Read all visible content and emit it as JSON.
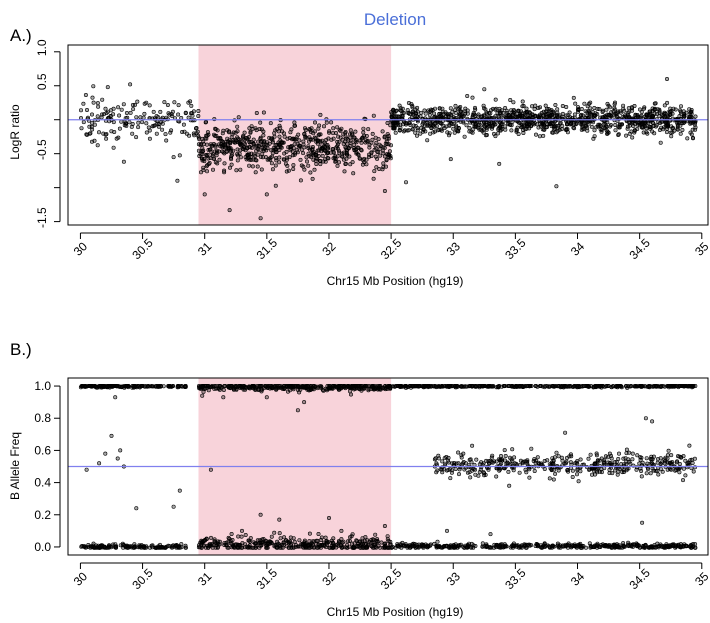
{
  "chart_data": [
    {
      "type": "scatter",
      "panel_label": "A.)",
      "title": "Deletion",
      "xlabel": "Chr15 Mb Position (hg19)",
      "ylabel": "LogR ratio",
      "xlim": [
        29.9,
        35.05
      ],
      "ylim": [
        -1.55,
        1.1
      ],
      "x_ticks": [
        30,
        30.5,
        31,
        31.5,
        32,
        32.5,
        33,
        33.5,
        34,
        34.5,
        35
      ],
      "x_tick_labels": [
        "30",
        "30.5",
        "31",
        "31.5",
        "32",
        "32.5",
        "33",
        "33.5",
        "34",
        "34.5",
        "35"
      ],
      "y_ticks": [
        -1.5,
        -1.0,
        -0.5,
        0,
        0.5,
        1.0
      ],
      "y_tick_labels": [
        "-1.5",
        "",
        "-0.5",
        "",
        "0.5",
        "1.0"
      ],
      "reference_line_y": 0,
      "highlight_region": {
        "x_start": 30.95,
        "x_end": 32.5,
        "color": "#f8d3da"
      },
      "line_color": "#8080ee",
      "point_color": "#000000",
      "series": [
        {
          "segments": [
            {
              "x_start": 30.0,
              "x_end": 30.95,
              "mean": 0.0,
              "sd": 0.15,
              "n": 170
            },
            {
              "x_start": 30.95,
              "x_end": 32.5,
              "mean": -0.4,
              "sd": 0.17,
              "n": 650
            },
            {
              "x_start": 32.5,
              "x_end": 34.95,
              "mean": 0.0,
              "sd": 0.11,
              "n": 1100
            }
          ],
          "outliers": [
            {
              "x": 30.35,
              "y": -0.62
            },
            {
              "x": 30.75,
              "y": -0.55
            },
            {
              "x": 30.78,
              "y": -0.9
            },
            {
              "x": 31.2,
              "y": -1.33
            },
            {
              "x": 31.45,
              "y": -1.45
            },
            {
              "x": 31.0,
              "y": -1.1
            },
            {
              "x": 31.5,
              "y": -1.1
            },
            {
              "x": 32.45,
              "y": -1.05
            },
            {
              "x": 32.62,
              "y": -0.92
            },
            {
              "x": 32.98,
              "y": -0.58
            },
            {
              "x": 33.25,
              "y": 0.45
            },
            {
              "x": 33.37,
              "y": -0.65
            },
            {
              "x": 33.83,
              "y": -0.98
            },
            {
              "x": 34.72,
              "y": 0.6
            },
            {
              "x": 30.4,
              "y": 0.52
            },
            {
              "x": 30.22,
              "y": 0.48
            }
          ]
        }
      ]
    },
    {
      "type": "scatter",
      "panel_label": "B.)",
      "title": "",
      "xlabel": "Chr15 Mb Position (hg19)",
      "ylabel": "B Allele Freq",
      "xlim": [
        29.9,
        35.05
      ],
      "ylim": [
        -0.05,
        1.05
      ],
      "x_ticks": [
        30,
        30.5,
        31,
        31.5,
        32,
        32.5,
        33,
        33.5,
        34,
        34.5,
        35
      ],
      "x_tick_labels": [
        "30",
        "30.5",
        "31",
        "31.5",
        "32",
        "32.5",
        "33",
        "33.5",
        "34",
        "34.5",
        "35"
      ],
      "y_ticks": [
        0.0,
        0.2,
        0.4,
        0.6,
        0.8,
        1.0
      ],
      "y_tick_labels": [
        "0.0",
        "0.2",
        "0.4",
        "0.6",
        "0.8",
        "1.0"
      ],
      "reference_line_y": 0.5,
      "highlight_region": {
        "x_start": 30.95,
        "x_end": 32.5,
        "color": "#f8d3da"
      },
      "line_color": "#8080ee",
      "point_color": "#000000",
      "series": [
        {
          "segments": [
            {
              "x_start": 30.0,
              "x_end": 30.85,
              "mean": 1.0,
              "sd": 0.004,
              "n": 160
            },
            {
              "x_start": 30.95,
              "x_end": 32.5,
              "mean": 0.995,
              "sd": 0.012,
              "n": 380
            },
            {
              "x_start": 32.5,
              "x_end": 34.95,
              "mean": 1.0,
              "sd": 0.004,
              "n": 420
            },
            {
              "x_start": 30.0,
              "x_end": 30.85,
              "mean": 0.0,
              "sd": 0.008,
              "n": 150
            },
            {
              "x_start": 30.95,
              "x_end": 32.5,
              "mean": 0.015,
              "sd": 0.025,
              "n": 360
            },
            {
              "x_start": 32.5,
              "x_end": 34.95,
              "mean": 0.005,
              "sd": 0.008,
              "n": 430
            },
            {
              "x_start": 32.85,
              "x_end": 34.95,
              "mean": 0.51,
              "sd": 0.035,
              "n": 420
            }
          ],
          "outliers": [
            {
              "x": 30.05,
              "y": 0.48
            },
            {
              "x": 30.15,
              "y": 0.52
            },
            {
              "x": 30.2,
              "y": 0.58
            },
            {
              "x": 30.25,
              "y": 0.69
            },
            {
              "x": 30.3,
              "y": 0.55
            },
            {
              "x": 30.32,
              "y": 0.6
            },
            {
              "x": 30.35,
              "y": 0.5
            },
            {
              "x": 30.28,
              "y": 0.93
            },
            {
              "x": 30.45,
              "y": 0.24
            },
            {
              "x": 30.75,
              "y": 0.25
            },
            {
              "x": 30.8,
              "y": 0.35
            },
            {
              "x": 31.05,
              "y": 0.48
            },
            {
              "x": 30.98,
              "y": 0.94
            },
            {
              "x": 31.15,
              "y": 0.93
            },
            {
              "x": 31.5,
              "y": 0.93
            },
            {
              "x": 31.75,
              "y": 0.85
            },
            {
              "x": 31.8,
              "y": 0.9
            },
            {
              "x": 31.6,
              "y": 0.17
            },
            {
              "x": 31.45,
              "y": 0.2
            },
            {
              "x": 32.0,
              "y": 0.18
            },
            {
              "x": 32.45,
              "y": 0.13
            },
            {
              "x": 32.1,
              "y": 0.1
            },
            {
              "x": 31.3,
              "y": 0.1
            },
            {
              "x": 33.45,
              "y": 0.38
            },
            {
              "x": 33.9,
              "y": 0.71
            },
            {
              "x": 34.55,
              "y": 0.8
            },
            {
              "x": 34.6,
              "y": 0.78
            },
            {
              "x": 34.52,
              "y": 0.15
            },
            {
              "x": 34.65,
              "y": 0.45
            },
            {
              "x": 34.9,
              "y": 0.63
            },
            {
              "x": 33.3,
              "y": 0.08
            },
            {
              "x": 32.95,
              "y": 0.1
            }
          ]
        }
      ]
    }
  ]
}
